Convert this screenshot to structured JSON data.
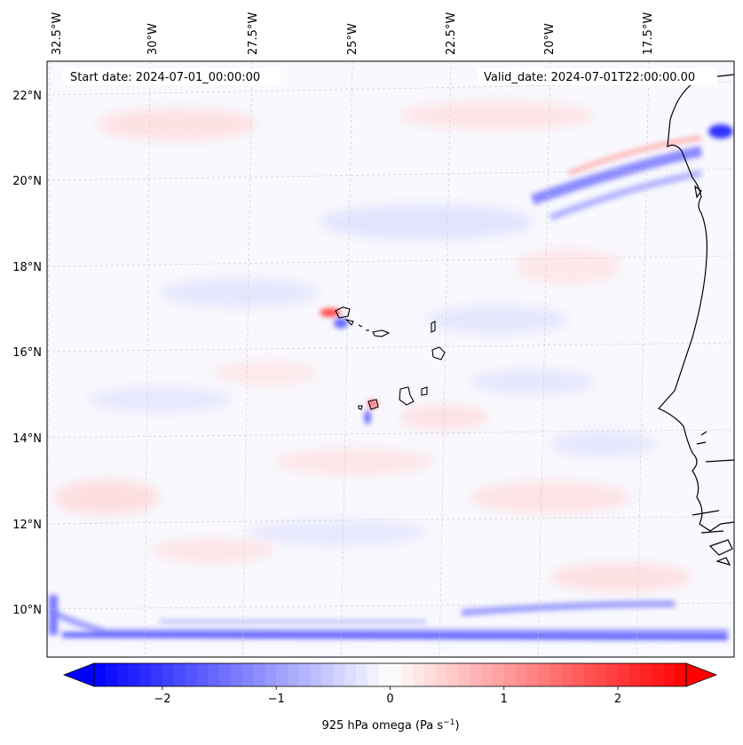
{
  "header": {
    "start_date": "Start date: 2024-07-01_00:00:00",
    "valid_date": "Valid_date: 2024-07-01T22:00:00.00"
  },
  "map": {
    "lon_labels": [
      "32.5°W",
      "30°W",
      "27.5°W",
      "25°W",
      "22.5°W",
      "20°W",
      "17.5°W"
    ],
    "lat_labels": [
      "22°N",
      "20°N",
      "18°N",
      "16°N",
      "14°N",
      "12°N",
      "10°N"
    ],
    "field": "925 hPa omega"
  },
  "colorbar": {
    "ticks": [
      "−2",
      "−1",
      "0",
      "1",
      "2"
    ],
    "tick_values": [
      -2,
      -1,
      0,
      1,
      2
    ],
    "vmin": -2.6,
    "vmax": 2.6,
    "label": "925 hPa omega (Pa s",
    "label_sup": "−1",
    "label_close": ")"
  },
  "colors": {
    "negative": "#0000ff",
    "zero": "#ffffff",
    "positive": "#ff0000",
    "coastline": "#000000",
    "gridline": "#b0b0b0"
  }
}
